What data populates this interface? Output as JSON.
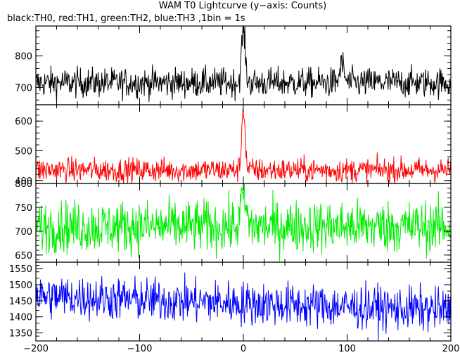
{
  "chart_data": {
    "type": "line",
    "title": "WAM T0 Lightcurve (y−axis: Counts)",
    "subtitle": "black:TH0, red:TH1, green:TH2, blue:TH3 ,1bin = 1s",
    "xlabel": "",
    "ylabel": "",
    "xlim": [
      -200,
      200
    ],
    "x_ticks": [
      "−200",
      "−100",
      "0",
      "100",
      "200"
    ],
    "x_tick_values": [
      -200,
      -100,
      0,
      100,
      200
    ],
    "grid": false,
    "panels": [
      {
        "series": "TH0",
        "color": "#000000",
        "ylim": [
          645,
          895
        ],
        "y_ticks": [
          700,
          800
        ],
        "y_tick_labels": [
          "700",
          "800"
        ],
        "base": 715,
        "noise": 52,
        "features": [
          {
            "x": 0,
            "peak": 880,
            "width": 1.8
          },
          {
            "x": 95,
            "peak": 775,
            "width": 2
          }
        ]
      },
      {
        "series": "TH1",
        "color": "#ff0000",
        "ylim": [
          390,
          655
        ],
        "y_ticks": [
          400,
          500,
          600
        ],
        "y_tick_labels": [
          "400",
          "500",
          "600"
        ],
        "base": 435,
        "noise": 45,
        "features": [
          {
            "x": 0,
            "peak": 650,
            "width": 1.6
          }
        ]
      },
      {
        "series": "TH2",
        "color": "#00ee00",
        "ylim": [
          635,
          800
        ],
        "y_ticks": [
          650,
          700,
          750,
          800
        ],
        "y_tick_labels": [
          "650",
          "700",
          "750",
          "800"
        ],
        "base": 710,
        "noise": 60,
        "features": [
          {
            "x": 0,
            "peak": 775,
            "width": 2.5
          }
        ]
      },
      {
        "series": "TH3",
        "color": "#0000ff",
        "ylim": [
          1325,
          1570
        ],
        "y_ticks": [
          1350,
          1400,
          1450,
          1500,
          1550
        ],
        "y_tick_labels": [
          "1350",
          "1400",
          "1450",
          "1500",
          "1550"
        ],
        "base_start": 1465,
        "base_end": 1420,
        "noise": 75,
        "features": []
      }
    ]
  }
}
